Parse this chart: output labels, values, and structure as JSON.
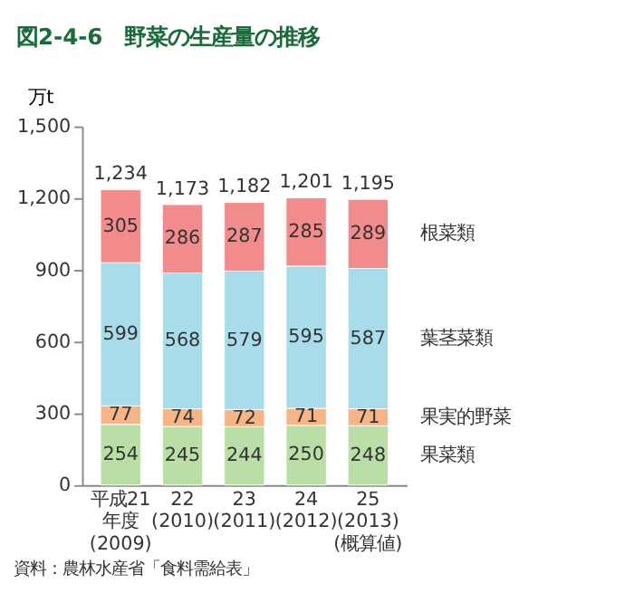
{
  "chart_data": {
    "type": "bar",
    "stacked": true,
    "title": "図2-4-6　野菜の生産量の推移",
    "ylabel": "万t",
    "categories": [
      "平成21\n年度\n(2009)",
      "22\n(2010)",
      "23\n(2011)",
      "24\n(2012)",
      "25\n(2013)\n(概算値)"
    ],
    "series": [
      {
        "name": "果菜類",
        "color": "#b9dfa6",
        "values": [
          254,
          245,
          244,
          250,
          248
        ]
      },
      {
        "name": "果実的野菜",
        "color": "#f6b585",
        "values": [
          77,
          74,
          72,
          71,
          71
        ]
      },
      {
        "name": "葉茎菜類",
        "color": "#a9dcea",
        "values": [
          599,
          568,
          579,
          595,
          587
        ]
      },
      {
        "name": "根菜類",
        "color": "#f28b8b",
        "values": [
          305,
          286,
          287,
          285,
          289
        ]
      }
    ],
    "totals": [
      "1,234",
      "1,173",
      "1,182",
      "1,201",
      "1,195"
    ],
    "data_labels": true,
    "ylim": [
      0,
      1500
    ],
    "yticks": [
      0,
      300,
      600,
      900,
      {
        "value": 1200,
        "label": "1,200"
      },
      {
        "value": 1500,
        "label": "1,500"
      }
    ],
    "grid": false,
    "annotations": [
      "資料：農林水産省「食料需給表」"
    ]
  }
}
